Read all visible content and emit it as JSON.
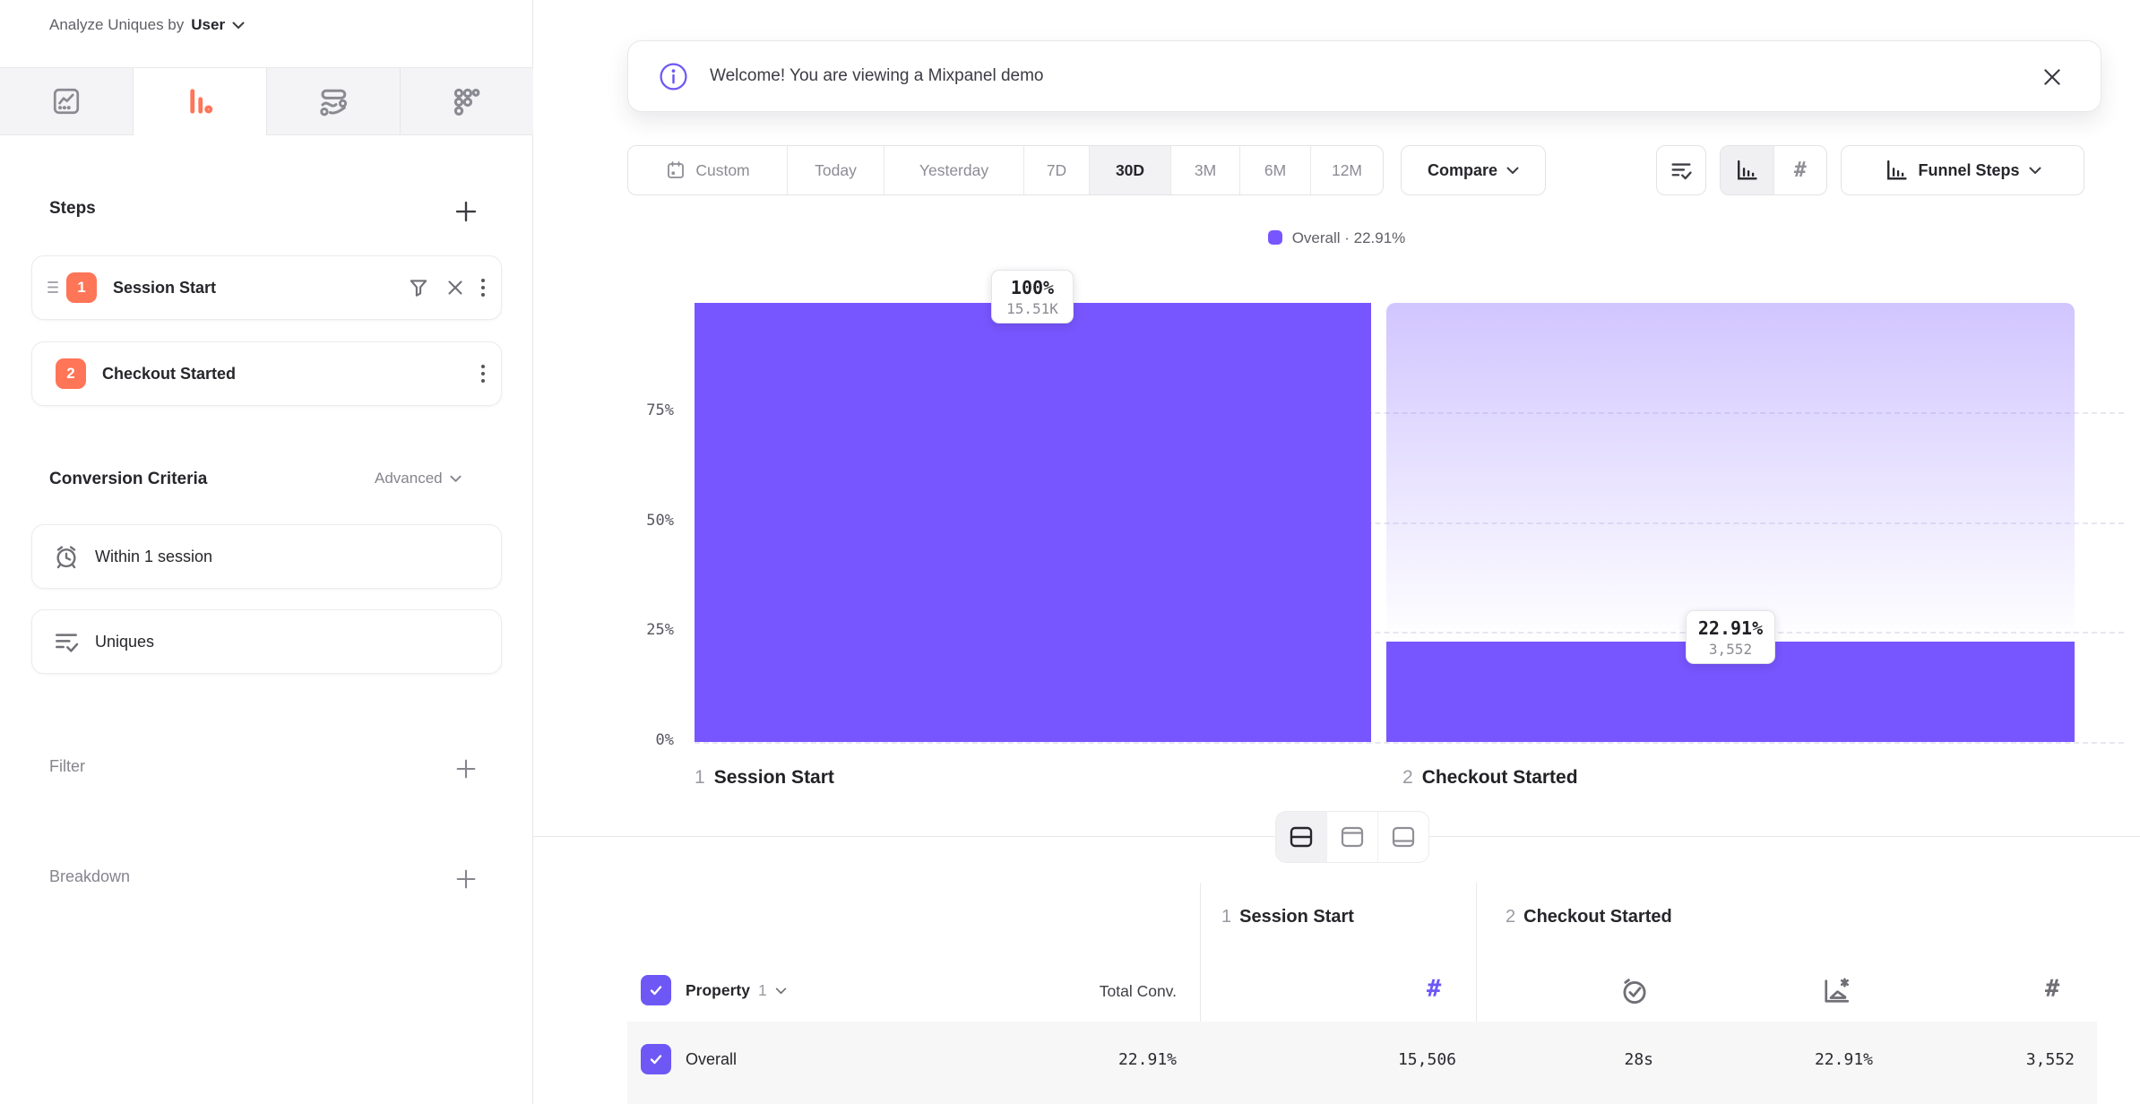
{
  "sidebar": {
    "analyze": {
      "label": "Analyze Uniques by",
      "value": "User"
    },
    "tabs": [
      {
        "name": "insights"
      },
      {
        "name": "funnels",
        "active": true
      },
      {
        "name": "flows"
      },
      {
        "name": "retention"
      }
    ],
    "steps": {
      "title": "Steps",
      "items": [
        {
          "num": "1",
          "label": "Session Start"
        },
        {
          "num": "2",
          "label": "Checkout Started"
        }
      ]
    },
    "conversion": {
      "title": "Conversion Criteria",
      "advanced": "Advanced",
      "window": "Within 1 session",
      "counting": "Uniques"
    },
    "filter": {
      "label": "Filter"
    },
    "breakdown": {
      "label": "Breakdown"
    }
  },
  "banner": {
    "message": "Welcome! You are viewing a Mixpanel demo"
  },
  "toolbar": {
    "ranges": [
      "Custom",
      "Today",
      "Yesterday",
      "7D",
      "30D",
      "3M",
      "6M",
      "12M"
    ],
    "selected_range": "30D",
    "compare": "Compare",
    "chart_type": "Funnel Steps"
  },
  "chart_data": {
    "type": "bar",
    "title": "Funnel Steps",
    "legend_text": "Overall · 22.91%",
    "legend_position": "top-center",
    "categories": [
      {
        "num": "1",
        "name": "Session Start"
      },
      {
        "num": "2",
        "name": "Checkout Started"
      }
    ],
    "series": [
      {
        "name": "Overall",
        "values_pct": [
          100,
          22.91
        ],
        "counts": [
          15506,
          3552
        ]
      }
    ],
    "tooltips": [
      {
        "pct": "100%",
        "count": "15.51K"
      },
      {
        "pct": "22.91%",
        "count": "3,552"
      }
    ],
    "yticks": [
      "75%",
      "50%",
      "25%",
      "0%"
    ],
    "ylim": [
      0,
      100
    ],
    "grid": "dashed-horizontal",
    "colors": {
      "bar": "#7856FF",
      "ghost_top": "rgba(120,86,255,0.34)",
      "accent_orange": "#FF7557"
    }
  },
  "table": {
    "header": {
      "property": "Property",
      "property_num": "1",
      "total_conv": "Total Conv.",
      "steps": [
        {
          "num": "1",
          "name": "Session Start"
        },
        {
          "num": "2",
          "name": "Checkout Started"
        }
      ]
    },
    "rows": [
      {
        "name": "Overall",
        "total_conv": "22.91%",
        "step1_uniques": "15,506",
        "step2_avg_time": "28s",
        "step2_conv_rate": "22.91%",
        "step2_uniques": "3,552"
      }
    ]
  }
}
